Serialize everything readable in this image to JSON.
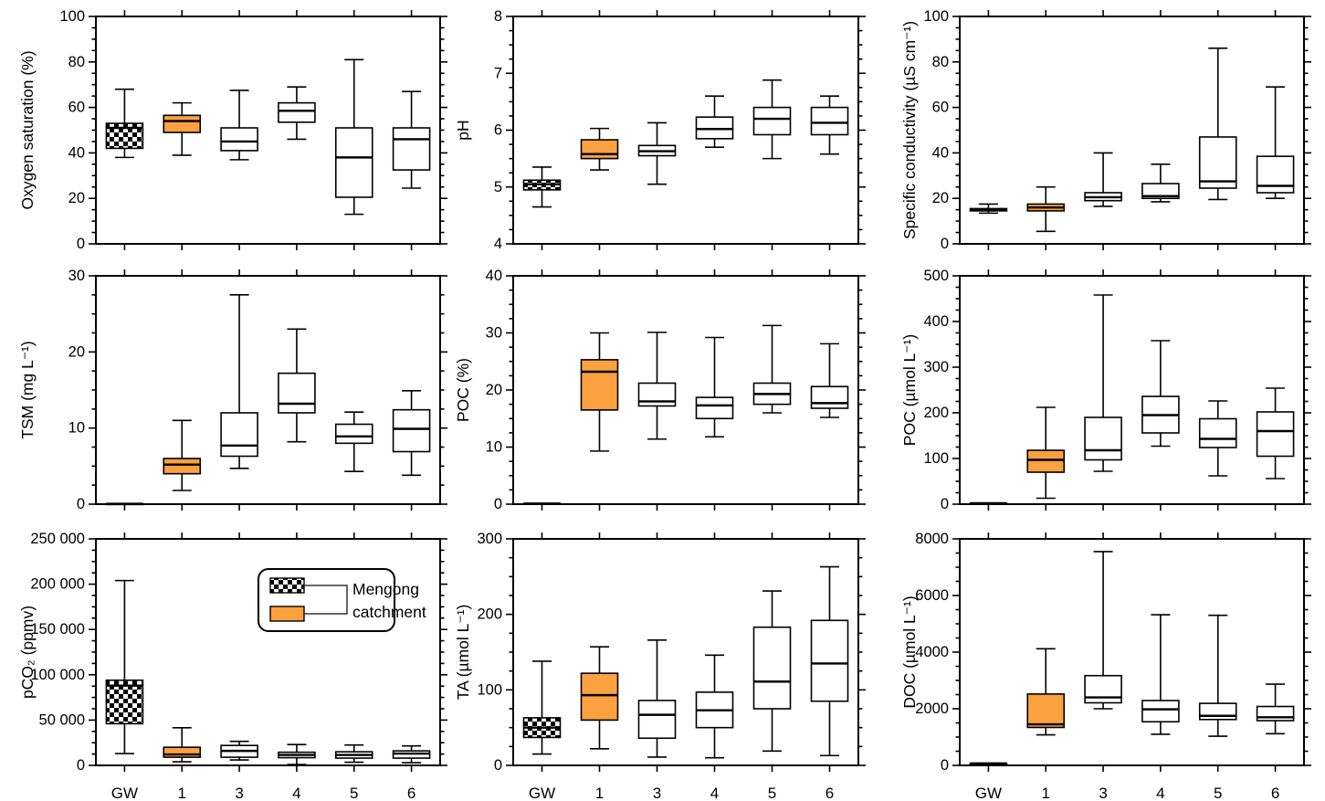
{
  "figure": {
    "kind": "boxplot-grid",
    "rows": 3,
    "cols": 3,
    "background": "#ffffff"
  },
  "categories": [
    "GW",
    "1",
    "3",
    "4",
    "5",
    "6"
  ],
  "box_styles": [
    "checkered",
    "orange",
    "white",
    "white",
    "white",
    "white"
  ],
  "colors": {
    "orange": "#FBA140",
    "checker_dark": "#000000",
    "checker_light": "#ffffff",
    "box_edge": "#000000",
    "axis": "#000000",
    "background": "#ffffff"
  },
  "legend": {
    "line1": "Mengong",
    "line2": "catchment",
    "swatches": [
      "checkered",
      "orange"
    ]
  },
  "chart_data": [
    {
      "type": "box",
      "id": "oxygen-saturation",
      "ylabel": "Oxygen saturation (%)",
      "ylim": [
        0,
        100
      ],
      "ymajor": 20,
      "ytick_labels": [
        "0",
        "20",
        "40",
        "60",
        "80",
        "100"
      ],
      "categories": [
        "GW",
        "1",
        "3",
        "4",
        "5",
        "6"
      ],
      "series": [
        {
          "category": "GW",
          "values": [
            38,
            42,
            51,
            53,
            68
          ]
        },
        {
          "category": "1",
          "values": [
            39,
            49,
            54,
            56.5,
            62
          ]
        },
        {
          "category": "3",
          "values": [
            37,
            41,
            45,
            51,
            67.5
          ]
        },
        {
          "category": "4",
          "values": [
            46,
            53.5,
            58.5,
            62,
            69
          ]
        },
        {
          "category": "5",
          "values": [
            13,
            20.5,
            38,
            51,
            81
          ]
        },
        {
          "category": "6",
          "values": [
            24.5,
            32.5,
            46,
            51,
            67
          ]
        }
      ]
    },
    {
      "type": "box",
      "id": "ph",
      "ylabel": "pH",
      "ylim": [
        4,
        8
      ],
      "ymajor": 1,
      "ytick_labels": [
        "4",
        "5",
        "6",
        "7",
        "8"
      ],
      "categories": [
        "GW",
        "1",
        "3",
        "4",
        "5",
        "6"
      ],
      "series": [
        {
          "category": "GW",
          "values": [
            4.65,
            4.95,
            5.05,
            5.12,
            5.35
          ]
        },
        {
          "category": "1",
          "values": [
            5.3,
            5.5,
            5.58,
            5.83,
            6.03
          ]
        },
        {
          "category": "3",
          "values": [
            5.05,
            5.55,
            5.63,
            5.73,
            6.13
          ]
        },
        {
          "category": "4",
          "values": [
            5.7,
            5.85,
            6.02,
            6.23,
            6.6
          ]
        },
        {
          "category": "5",
          "values": [
            5.5,
            5.92,
            6.2,
            6.4,
            6.88
          ]
        },
        {
          "category": "6",
          "values": [
            5.58,
            5.92,
            6.13,
            6.4,
            6.6
          ]
        }
      ]
    },
    {
      "type": "box",
      "id": "specific-conductivity",
      "ylabel": "Specific conductivity (µS cm⁻¹)",
      "ylim": [
        0,
        100
      ],
      "ymajor": 20,
      "ytick_labels": [
        "0",
        "20",
        "40",
        "60",
        "80",
        "100"
      ],
      "categories": [
        "GW",
        "1",
        "3",
        "4",
        "5",
        "6"
      ],
      "series": [
        {
          "category": "GW",
          "values": [
            13.5,
            14.5,
            15,
            15.5,
            17.5
          ]
        },
        {
          "category": "1",
          "values": [
            5.5,
            14.5,
            16,
            17.5,
            25
          ]
        },
        {
          "category": "3",
          "values": [
            16.5,
            19,
            20.5,
            22.5,
            40
          ]
        },
        {
          "category": "4",
          "values": [
            18.5,
            20,
            21,
            26.5,
            35
          ]
        },
        {
          "category": "5",
          "values": [
            19.5,
            24.5,
            27.5,
            47,
            86
          ]
        },
        {
          "category": "6",
          "values": [
            20,
            22.5,
            25.5,
            38.5,
            69
          ]
        }
      ]
    },
    {
      "type": "box",
      "id": "tsm",
      "ylabel": "TSM (mg L⁻¹)",
      "ylim": [
        0,
        30
      ],
      "ymajor": 10,
      "ytick_labels": [
        "0",
        "10",
        "20",
        "30"
      ],
      "categories": [
        "GW",
        "1",
        "3",
        "4",
        "5",
        "6"
      ],
      "series": [
        {
          "category": "GW",
          "values": [
            0.05,
            0.05,
            0.05,
            0.05,
            0.05
          ]
        },
        {
          "category": "1",
          "values": [
            1.8,
            4,
            5.2,
            6,
            11
          ]
        },
        {
          "category": "3",
          "values": [
            4.7,
            6.3,
            7.7,
            12,
            27.5
          ]
        },
        {
          "category": "4",
          "values": [
            8.2,
            12,
            13.2,
            17.2,
            23
          ]
        },
        {
          "category": "5",
          "values": [
            4.3,
            8,
            8.9,
            10.5,
            12.1
          ]
        },
        {
          "category": "6",
          "values": [
            3.8,
            6.9,
            9.9,
            12.4,
            14.9
          ]
        }
      ]
    },
    {
      "type": "box",
      "id": "poc-percent",
      "ylabel": "POC (%)",
      "ylim": [
        0,
        40
      ],
      "ymajor": 10,
      "ytick_labels": [
        "0",
        "10",
        "20",
        "30",
        "40"
      ],
      "categories": [
        "GW",
        "1",
        "3",
        "4",
        "5",
        "6"
      ],
      "series": [
        {
          "category": "GW",
          "values": [
            0.1,
            0.1,
            0.1,
            0.1,
            0.1
          ]
        },
        {
          "category": "1",
          "values": [
            9.3,
            16.5,
            23.2,
            25.3,
            30
          ]
        },
        {
          "category": "3",
          "values": [
            11.4,
            17.2,
            18,
            21.2,
            30.1
          ]
        },
        {
          "category": "4",
          "values": [
            11.8,
            15,
            17.3,
            18.7,
            29.2
          ]
        },
        {
          "category": "5",
          "values": [
            16,
            17.5,
            19.3,
            21.2,
            31.3
          ]
        },
        {
          "category": "6",
          "values": [
            15.2,
            16.8,
            17.7,
            20.6,
            28.1
          ]
        }
      ]
    },
    {
      "type": "box",
      "id": "poc-umol",
      "ylabel": "POC (µmol L⁻¹)",
      "ylim": [
        0,
        500
      ],
      "ymajor": 100,
      "ytick_labels": [
        "0",
        "100",
        "200",
        "300",
        "400",
        "500"
      ],
      "categories": [
        "GW",
        "1",
        "3",
        "4",
        "5",
        "6"
      ],
      "series": [
        {
          "category": "GW",
          "values": [
            2,
            2,
            2,
            2,
            2
          ]
        },
        {
          "category": "1",
          "values": [
            13,
            70,
            97,
            118,
            212
          ]
        },
        {
          "category": "3",
          "values": [
            72,
            97,
            118,
            190,
            458
          ]
        },
        {
          "category": "4",
          "values": [
            127,
            156,
            195,
            236,
            358
          ]
        },
        {
          "category": "5",
          "values": [
            62,
            124,
            143,
            187,
            226
          ]
        },
        {
          "category": "6",
          "values": [
            56,
            105,
            160,
            202,
            254
          ]
        }
      ]
    },
    {
      "type": "box",
      "id": "pco2",
      "ylabel": "pCO₂ (ppmv)",
      "ylim": [
        0,
        250000
      ],
      "ymajor": 50000,
      "ytick_labels": [
        "0",
        "50 000",
        "100 000",
        "150 000",
        "200 000",
        "250 000"
      ],
      "categories": [
        "GW",
        "1",
        "3",
        "4",
        "5",
        "6"
      ],
      "has_legend": true,
      "series": [
        {
          "category": "GW",
          "values": [
            13000,
            46000,
            88000,
            94000,
            204000
          ]
        },
        {
          "category": "1",
          "values": [
            4000,
            9000,
            12000,
            20000,
            41500
          ]
        },
        {
          "category": "3",
          "values": [
            6000,
            9000,
            16000,
            22000,
            26500
          ]
        },
        {
          "category": "4",
          "values": [
            1000,
            8500,
            11500,
            14500,
            23000
          ]
        },
        {
          "category": "5",
          "values": [
            3500,
            8000,
            11500,
            15000,
            22500
          ]
        },
        {
          "category": "6",
          "values": [
            3000,
            8000,
            13000,
            16000,
            21500
          ]
        }
      ]
    },
    {
      "type": "box",
      "id": "ta",
      "ylabel": "TA (µmol L⁻¹)",
      "ylim": [
        0,
        300
      ],
      "ymajor": 100,
      "ytick_labels": [
        "0",
        "100",
        "200",
        "300"
      ],
      "categories": [
        "GW",
        "1",
        "3",
        "4",
        "5",
        "6"
      ],
      "series": [
        {
          "category": "GW",
          "values": [
            15,
            37,
            50,
            63,
            138
          ]
        },
        {
          "category": "1",
          "values": [
            22,
            60,
            93,
            122,
            157
          ]
        },
        {
          "category": "3",
          "values": [
            11,
            36,
            67,
            86,
            166
          ]
        },
        {
          "category": "4",
          "values": [
            10,
            50,
            73,
            97,
            146
          ]
        },
        {
          "category": "5",
          "values": [
            19,
            75,
            111,
            183,
            231
          ]
        },
        {
          "category": "6",
          "values": [
            13,
            85,
            135,
            192,
            263
          ]
        }
      ]
    },
    {
      "type": "box",
      "id": "doc",
      "ylabel": "DOC (µmol L⁻¹)",
      "ylim": [
        0,
        8000
      ],
      "ymajor": 2000,
      "ytick_labels": [
        "0",
        "2000",
        "4000",
        "6000",
        "8000"
      ],
      "categories": [
        "GW",
        "1",
        "3",
        "4",
        "5",
        "6"
      ],
      "series": [
        {
          "category": "GW",
          "values": [
            70,
            70,
            70,
            70,
            70
          ]
        },
        {
          "category": "1",
          "values": [
            1080,
            1340,
            1450,
            2520,
            4120
          ]
        },
        {
          "category": "3",
          "values": [
            2000,
            2210,
            2400,
            3170,
            7550
          ]
        },
        {
          "category": "4",
          "values": [
            1100,
            1540,
            1980,
            2290,
            5320
          ]
        },
        {
          "category": "5",
          "values": [
            1030,
            1620,
            1750,
            2190,
            5300
          ]
        },
        {
          "category": "6",
          "values": [
            1120,
            1580,
            1700,
            2080,
            2870
          ]
        }
      ]
    }
  ]
}
